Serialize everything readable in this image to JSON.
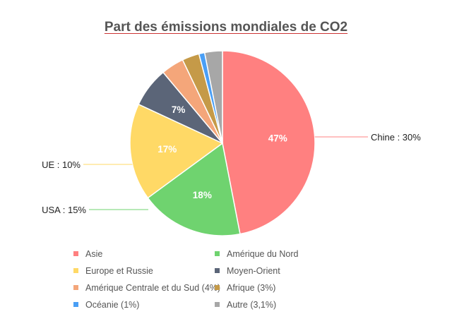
{
  "chart_data": {
    "type": "pie",
    "title": "Part des émissions mondiales de CO2",
    "categories": [
      "Asie",
      "Amérique du Nord",
      "Europe et Russie",
      "Moyen-Orient",
      "Amérique Centrale et du Sud (4%)",
      "Afrique (3%)",
      "Océanie (1%)",
      "Autre (3,1%)"
    ],
    "values": [
      47,
      18,
      17,
      7,
      4,
      3,
      1,
      3.1
    ],
    "slice_labels": [
      "47%",
      "18%",
      "17%",
      "7%",
      "",
      "",
      "",
      ""
    ],
    "colors": [
      "#ff8080",
      "#6fd36f",
      "#ffd966",
      "#5b6578",
      "#f4a67a",
      "#c59a48",
      "#4a9ff5",
      "#a7a7a7"
    ],
    "annotations": [
      {
        "text": "Chine : 30%",
        "slice": 0,
        "color": "#ff8080"
      },
      {
        "text": "UE : 10%",
        "slice": 2,
        "color": "#ffd966"
      },
      {
        "text": "USA : 15%",
        "slice": 1,
        "color": "#6fd36f"
      }
    ],
    "legend_position": "bottom",
    "start_angle": "top",
    "direction": "clockwise"
  }
}
